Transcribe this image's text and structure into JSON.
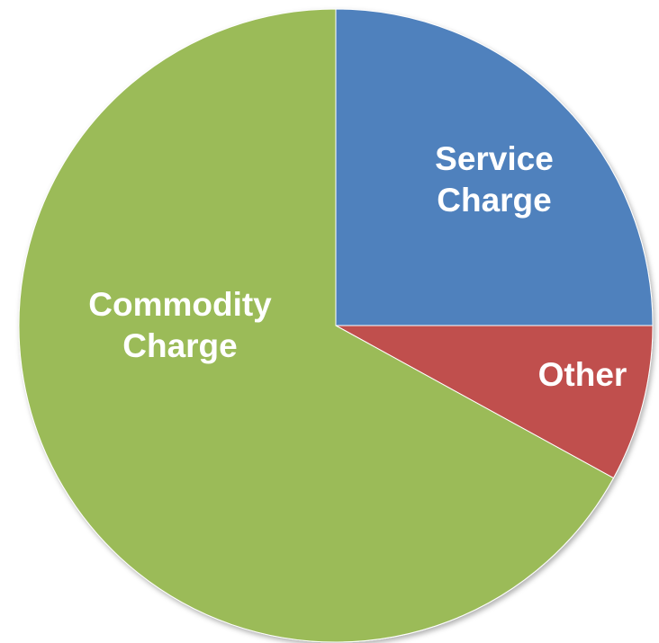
{
  "chart_data": {
    "type": "pie",
    "categories": [
      "Service Charge",
      "Other",
      "Commodity Charge"
    ],
    "values": [
      25,
      8,
      67
    ],
    "colors": [
      "#4f81bd",
      "#c0504d",
      "#9bbb59"
    ]
  }
}
